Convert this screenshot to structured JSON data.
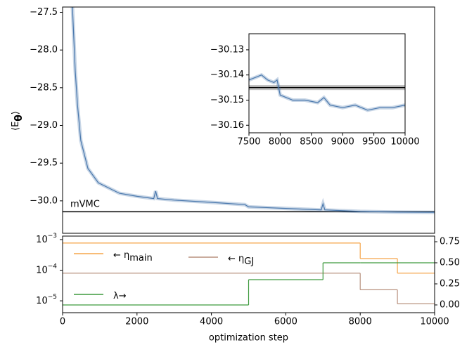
{
  "chart_data": [
    {
      "type": "line",
      "ylabel_parts": [
        "⟨E",
        "θ",
        "⟩"
      ],
      "annotation": "mVMC",
      "xlim": [
        0,
        10000
      ],
      "ylim": [
        -30.43,
        -27.43
      ],
      "yticks": [
        {
          "value": -27.5,
          "label": "−27.5"
        },
        {
          "value": -28.0,
          "label": "−28.0"
        },
        {
          "value": -28.5,
          "label": "−28.5"
        },
        {
          "value": -29.0,
          "label": "−29.0"
        },
        {
          "value": -29.5,
          "label": "−29.5"
        },
        {
          "value": -30.0,
          "label": "−30.0"
        }
      ],
      "hline": -30.145,
      "hline_color": "#000000",
      "series": [
        {
          "color": "#4a78ad",
          "x": [
            265,
            340,
            400,
            490,
            680,
            960,
            1530,
            2000,
            2450,
            2500,
            2550,
            3000,
            4000,
            4900,
            5000,
            6000,
            6950,
            7000,
            7050,
            8000,
            9000,
            10000
          ],
          "values": [
            -27.43,
            -28.28,
            -28.73,
            -29.2,
            -29.57,
            -29.76,
            -29.9,
            -29.94,
            -29.97,
            -29.87,
            -29.97,
            -29.99,
            -30.02,
            -30.05,
            -30.08,
            -30.1,
            -30.12,
            -30.04,
            -30.12,
            -30.14,
            -30.15,
            -30.152
          ]
        }
      ]
    },
    {
      "type": "line",
      "xlim": [
        7500,
        10000
      ],
      "ylim": [
        -30.163,
        -30.1236
      ],
      "xticks": [
        7500,
        8000,
        8500,
        9000,
        9500,
        10000
      ],
      "yticks": [
        {
          "value": -30.13,
          "label": "−30.13"
        },
        {
          "value": -30.14,
          "label": "−30.14"
        },
        {
          "value": -30.15,
          "label": "−30.15"
        },
        {
          "value": -30.16,
          "label": "−30.16"
        }
      ],
      "hline": -30.145,
      "hline_error": 0.001,
      "hline_color": "#000000",
      "series": [
        {
          "color": "#4a78ad",
          "x": [
            7500,
            7600,
            7700,
            7800,
            7900,
            7950,
            8000,
            8100,
            8200,
            8400,
            8600,
            8700,
            8800,
            9000,
            9200,
            9400,
            9600,
            9800,
            10000
          ],
          "values": [
            -30.142,
            -30.141,
            -30.14,
            -30.142,
            -30.143,
            -30.142,
            -30.148,
            -30.149,
            -30.15,
            -30.15,
            -30.151,
            -30.149,
            -30.152,
            -30.153,
            -30.152,
            -30.154,
            -30.153,
            -30.153,
            -30.152
          ]
        }
      ]
    },
    {
      "type": "step",
      "xlabel": "optimization step",
      "xlim": [
        0,
        10000
      ],
      "xticks": [
        0,
        2000,
        4000,
        6000,
        8000,
        10000
      ],
      "log_y": true,
      "ylim": [
        4.1e-06,
        0.0013
      ],
      "yticks": [
        {
          "value": 0.001,
          "label": "10",
          "exponent": "−3"
        },
        {
          "value": 0.0001,
          "label": "10",
          "exponent": "−4"
        },
        {
          "value": 1e-05,
          "label": "10",
          "exponent": "−5"
        }
      ],
      "y2lim": [
        -0.092,
        0.817
      ],
      "y2ticks": [
        0.75,
        {
          "value": 0.5,
          "label": "0.50"
        },
        0.25,
        {
          "value": 0,
          "label": "0.00"
        }
      ],
      "series": [
        {
          "name": "← η",
          "subscript": "main",
          "color": "#f5a54a",
          "edges": [
            0,
            8000,
            9000,
            10000
          ],
          "values": [
            0.00077,
            0.00024,
            8e-05
          ]
        },
        {
          "name": "← η",
          "subscript": "GJ",
          "color": "#b8917f",
          "edges": [
            0,
            8000,
            9000,
            10000
          ],
          "values": [
            8e-05,
            2.3e-05,
            8e-06
          ]
        },
        {
          "name": "λ→",
          "color": "#3d9a3d",
          "axis": "y2",
          "edges": [
            0,
            5000,
            7000,
            8000,
            10000
          ],
          "values": [
            0,
            0.3,
            0.5,
            0.5
          ]
        }
      ]
    }
  ]
}
